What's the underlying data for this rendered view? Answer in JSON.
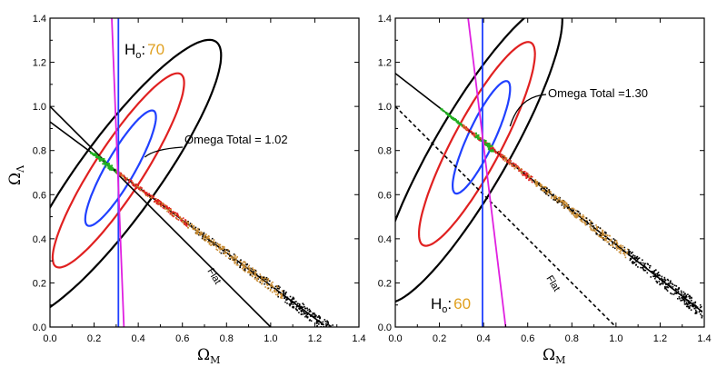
{
  "chart_data": [
    {
      "type": "scatter",
      "panel": "left",
      "xlabel": "Ω",
      "xlabel_sub": "M",
      "ylabel": "Ω",
      "ylabel_sub": "Λ",
      "xlim": [
        0,
        1.4
      ],
      "ylim": [
        0,
        1.4
      ],
      "xticks": [
        "0.0",
        "0.2",
        "0.4",
        "0.6",
        "0.8",
        "1.0",
        "1.2",
        "1.4"
      ],
      "yticks": [
        "0.0",
        "0.2",
        "0.4",
        "0.6",
        "0.8",
        "1.0",
        "1.2",
        "1.4"
      ],
      "grid": false,
      "h0_label": "H",
      "h0_sub": "o",
      "h0_sep": ":",
      "h0_value": "70",
      "annotation": "Omega Total = 1.02",
      "annotation_pointer": [
        0.43,
        0.77
      ],
      "flat_label": "Flat",
      "flat_line": {
        "x": [
          0.0,
          1.0
        ],
        "y": [
          1.0,
          0.0
        ],
        "style": "solid"
      },
      "fit_line": {
        "x": [
          0.0,
          1.24
        ],
        "y": [
          0.93,
          0.01
        ]
      },
      "vertical_lines": [
        {
          "color": "#2040ff",
          "x": [
            0.31,
            0.31
          ],
          "y": [
            0.0,
            1.4
          ]
        },
        {
          "color": "#e020e0",
          "x": [
            0.28,
            0.335
          ],
          "y": [
            1.4,
            0.0
          ]
        }
      ],
      "contours": [
        {
          "color": "#2040ff",
          "center": [
            0.32,
            0.72
          ],
          "semi_axes": [
            0.3,
            0.065
          ],
          "angle_deg": 60
        },
        {
          "color": "#e02020",
          "center": [
            0.31,
            0.71
          ],
          "semi_axes": [
            0.52,
            0.11
          ],
          "angle_deg": 57
        },
        {
          "color": "#000000",
          "center": [
            0.3,
            0.67
          ],
          "semi_axes": [
            0.77,
            0.18
          ],
          "angle_deg": 54
        }
      ],
      "scatter": {
        "points": [
          [
            0.2,
            0.78
          ],
          [
            0.25,
            0.75
          ],
          [
            0.3,
            0.71
          ],
          [
            0.35,
            0.67
          ],
          [
            0.4,
            0.63
          ],
          [
            0.45,
            0.59
          ],
          [
            0.5,
            0.55
          ],
          [
            0.55,
            0.51
          ],
          [
            0.6,
            0.47
          ],
          [
            0.65,
            0.44
          ],
          [
            0.7,
            0.4
          ],
          [
            0.75,
            0.36
          ],
          [
            0.8,
            0.32
          ],
          [
            0.85,
            0.28
          ],
          [
            0.9,
            0.25
          ],
          [
            0.95,
            0.21
          ],
          [
            1.0,
            0.17
          ],
          [
            1.05,
            0.13
          ],
          [
            1.1,
            0.1
          ],
          [
            1.15,
            0.07
          ],
          [
            1.2,
            0.04
          ],
          [
            1.25,
            0.02
          ]
        ],
        "colors": {
          "green": "#20b020",
          "red": "#e02020",
          "orange": "#c88a30",
          "black": "#000000"
        }
      }
    },
    {
      "type": "scatter",
      "panel": "right",
      "xlabel": "Ω",
      "xlabel_sub": "M",
      "xlim": [
        0,
        1.4
      ],
      "ylim": [
        0,
        1.4
      ],
      "xticks": [
        "0.0",
        "0.2",
        "0.4",
        "0.6",
        "0.8",
        "1.0",
        "1.2",
        "1.4"
      ],
      "yticks": [
        "0.0",
        "0.2",
        "0.4",
        "0.6",
        "0.8",
        "1.0",
        "1.2",
        "1.4"
      ],
      "grid": false,
      "h0_label": "H",
      "h0_sub": "o",
      "h0_sep": ":",
      "h0_value": "60",
      "annotation": "Omega Total =1.30",
      "annotation_pointer": [
        0.52,
        0.91
      ],
      "flat_label": "Flat",
      "flat_line": {
        "x": [
          0.0,
          1.0
        ],
        "y": [
          1.0,
          0.0
        ],
        "style": "dashed"
      },
      "fit_line": {
        "x": [
          0.0,
          1.39
        ],
        "y": [
          1.15,
          0.07
        ]
      },
      "vertical_lines": [
        {
          "color": "#2040ff",
          "x": [
            0.395,
            0.395
          ],
          "y": [
            0.0,
            1.4
          ]
        },
        {
          "color": "#e020e0",
          "x": [
            0.33,
            0.5
          ],
          "y": [
            1.4,
            0.0
          ]
        }
      ],
      "contours": [
        {
          "color": "#2040ff",
          "center": [
            0.39,
            0.86
          ],
          "semi_axes": [
            0.28,
            0.06
          ],
          "angle_deg": 65
        },
        {
          "color": "#e02020",
          "center": [
            0.37,
            0.83
          ],
          "semi_axes": [
            0.52,
            0.11
          ],
          "angle_deg": 62
        },
        {
          "color": "#000000",
          "center": [
            0.34,
            0.79
          ],
          "semi_axes": [
            0.78,
            0.17
          ],
          "angle_deg": 60
        }
      ],
      "scatter": {
        "points": [
          [
            0.2,
            1.0
          ],
          [
            0.25,
            0.96
          ],
          [
            0.3,
            0.93
          ],
          [
            0.35,
            0.89
          ],
          [
            0.4,
            0.85
          ],
          [
            0.45,
            0.81
          ],
          [
            0.5,
            0.77
          ],
          [
            0.55,
            0.73
          ],
          [
            0.6,
            0.69
          ],
          [
            0.65,
            0.65
          ],
          [
            0.7,
            0.61
          ],
          [
            0.75,
            0.57
          ],
          [
            0.8,
            0.53
          ],
          [
            0.85,
            0.5
          ],
          [
            0.9,
            0.46
          ],
          [
            0.95,
            0.42
          ],
          [
            1.0,
            0.38
          ],
          [
            1.05,
            0.34
          ],
          [
            1.1,
            0.3
          ],
          [
            1.15,
            0.26
          ],
          [
            1.2,
            0.22
          ],
          [
            1.25,
            0.18
          ],
          [
            1.3,
            0.14
          ],
          [
            1.35,
            0.1
          ],
          [
            1.38,
            0.08
          ]
        ],
        "colors": {
          "green": "#20b020",
          "red": "#e02020",
          "orange": "#c88a30",
          "black": "#000000"
        }
      }
    }
  ]
}
